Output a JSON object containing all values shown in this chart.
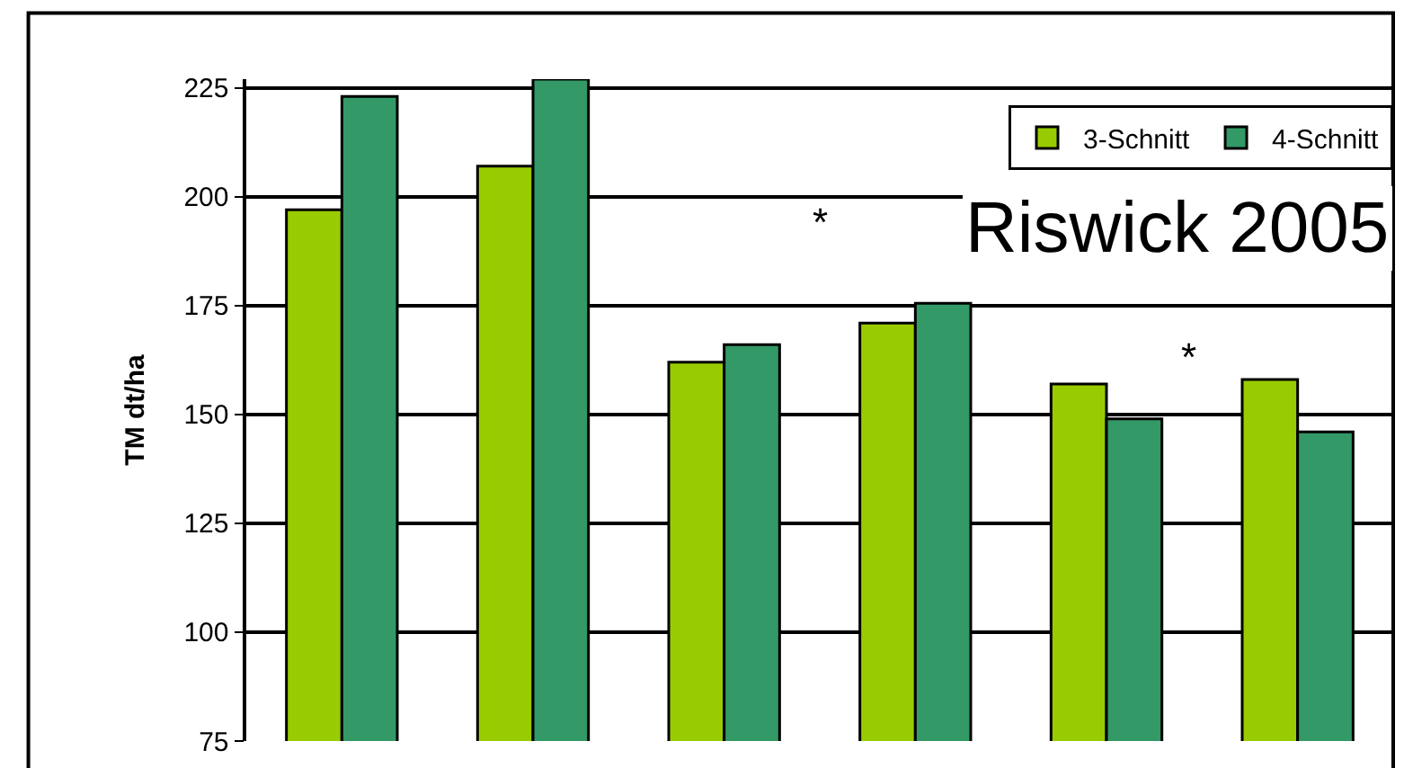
{
  "chart_data": {
    "type": "bar",
    "ylabel": "TM dt/ha",
    "categories": [
      null,
      null,
      null,
      null,
      null,
      null
    ],
    "series": [
      {
        "name": "3-Schnitt",
        "color": "#99cc00",
        "values": [
          197,
          207,
          162,
          171,
          157,
          158
        ]
      },
      {
        "name": "4-Schnitt",
        "color": "#339966",
        "values": [
          223,
          227,
          166,
          175.5,
          149,
          146
        ]
      }
    ],
    "ylim": [
      75,
      227
    ],
    "yticks": [
      75,
      100,
      125,
      150,
      175,
      200,
      225
    ],
    "tick_labels": "y",
    "grid": "y",
    "legend": "top right",
    "annotations": [
      "*",
      "*",
      "Riswick 2005"
    ]
  }
}
